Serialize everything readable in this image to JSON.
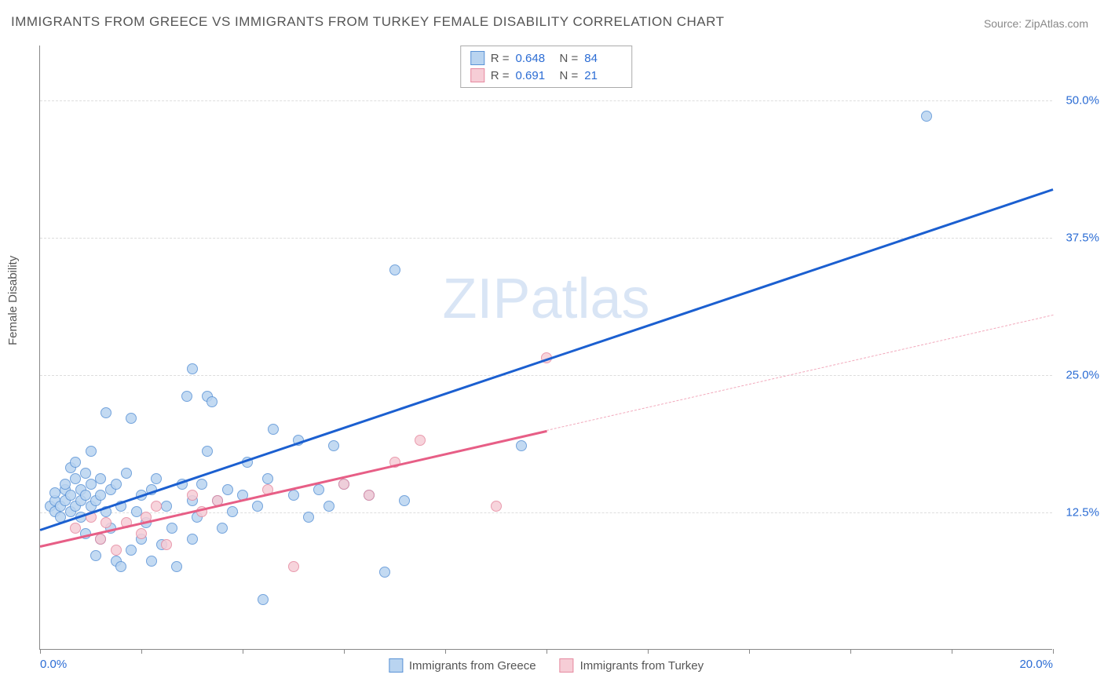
{
  "title": "IMMIGRANTS FROM GREECE VS IMMIGRANTS FROM TURKEY FEMALE DISABILITY CORRELATION CHART",
  "source": "Source: ZipAtlas.com",
  "ylabel": "Female Disability",
  "watermark": "ZIPatlas",
  "chart": {
    "type": "scatter",
    "xlim": [
      0,
      20
    ],
    "ylim": [
      0,
      55
    ],
    "xtick_positions": [
      0,
      2,
      4,
      6,
      8,
      10,
      12,
      14,
      16,
      18,
      20
    ],
    "xtick_labels": {
      "0": "0.0%",
      "20": "20.0%"
    },
    "ytick_positions": [
      12.5,
      25.0,
      37.5,
      50.0
    ],
    "ytick_labels": [
      "12.5%",
      "25.0%",
      "37.5%",
      "50.0%"
    ],
    "grid_color": "#dddddd",
    "axis_color": "#888888",
    "background_color": "#ffffff",
    "point_radius": 7,
    "series": [
      {
        "name": "Immigrants from Greece",
        "color_fill": "#b9d4f0",
        "color_stroke": "#5b93d6",
        "R": "0.648",
        "N": "84",
        "trend": {
          "x1": 0,
          "y1": 11.0,
          "x2": 20,
          "y2": 42.0,
          "solid_until_x": 20,
          "color": "#1b5fd0",
          "width": 2.5
        },
        "points": [
          [
            0.2,
            13.0
          ],
          [
            0.3,
            12.5
          ],
          [
            0.3,
            13.5
          ],
          [
            0.4,
            13.0
          ],
          [
            0.4,
            12.0
          ],
          [
            0.5,
            13.5
          ],
          [
            0.5,
            14.5
          ],
          [
            0.5,
            15.0
          ],
          [
            0.6,
            16.5
          ],
          [
            0.6,
            14.0
          ],
          [
            0.6,
            12.5
          ],
          [
            0.7,
            17.0
          ],
          [
            0.7,
            13.0
          ],
          [
            0.7,
            15.5
          ],
          [
            0.8,
            12.0
          ],
          [
            0.8,
            13.5
          ],
          [
            0.8,
            14.5
          ],
          [
            0.9,
            14.0
          ],
          [
            0.9,
            10.5
          ],
          [
            0.9,
            16.0
          ],
          [
            1.0,
            13.0
          ],
          [
            1.0,
            15.0
          ],
          [
            1.0,
            18.0
          ],
          [
            1.1,
            13.5
          ],
          [
            1.1,
            8.5
          ],
          [
            1.2,
            14.0
          ],
          [
            1.2,
            10.0
          ],
          [
            1.2,
            15.5
          ],
          [
            1.3,
            21.5
          ],
          [
            1.3,
            12.5
          ],
          [
            1.4,
            11.0
          ],
          [
            1.4,
            14.5
          ],
          [
            1.5,
            8.0
          ],
          [
            1.5,
            15.0
          ],
          [
            1.6,
            7.5
          ],
          [
            1.6,
            13.0
          ],
          [
            1.7,
            16.0
          ],
          [
            1.8,
            9.0
          ],
          [
            1.8,
            21.0
          ],
          [
            1.9,
            12.5
          ],
          [
            2.0,
            14.0
          ],
          [
            2.0,
            10.0
          ],
          [
            2.1,
            11.5
          ],
          [
            2.2,
            8.0
          ],
          [
            2.2,
            14.5
          ],
          [
            2.3,
            15.5
          ],
          [
            2.4,
            9.5
          ],
          [
            2.5,
            13.0
          ],
          [
            2.6,
            11.0
          ],
          [
            2.7,
            7.5
          ],
          [
            2.8,
            15.0
          ],
          [
            2.9,
            23.0
          ],
          [
            3.0,
            25.5
          ],
          [
            3.0,
            10.0
          ],
          [
            3.0,
            13.5
          ],
          [
            3.1,
            12.0
          ],
          [
            3.2,
            15.0
          ],
          [
            3.3,
            18.0
          ],
          [
            3.3,
            23.0
          ],
          [
            3.4,
            22.5
          ],
          [
            3.5,
            13.5
          ],
          [
            3.6,
            11.0
          ],
          [
            3.7,
            14.5
          ],
          [
            3.8,
            12.5
          ],
          [
            4.0,
            14.0
          ],
          [
            4.1,
            17.0
          ],
          [
            4.3,
            13.0
          ],
          [
            4.4,
            4.5
          ],
          [
            4.5,
            15.5
          ],
          [
            4.6,
            20.0
          ],
          [
            5.0,
            14.0
          ],
          [
            5.1,
            19.0
          ],
          [
            5.3,
            12.0
          ],
          [
            5.5,
            14.5
          ],
          [
            5.7,
            13.0
          ],
          [
            5.8,
            18.5
          ],
          [
            6.0,
            15.0
          ],
          [
            6.5,
            14.0
          ],
          [
            6.8,
            7.0
          ],
          [
            7.0,
            34.5
          ],
          [
            7.2,
            13.5
          ],
          [
            9.5,
            18.5
          ],
          [
            17.5,
            48.5
          ],
          [
            0.3,
            14.2
          ]
        ]
      },
      {
        "name": "Immigrants from Turkey",
        "color_fill": "#f6cdd6",
        "color_stroke": "#e68aa0",
        "R": "0.691",
        "N": "21",
        "trend": {
          "x1": 0,
          "y1": 9.5,
          "x2": 20,
          "y2": 30.5,
          "solid_until_x": 10,
          "color": "#e75e86",
          "width": 2.5,
          "dash_color": "#f2a9bc"
        },
        "points": [
          [
            0.7,
            11.0
          ],
          [
            1.0,
            12.0
          ],
          [
            1.2,
            10.0
          ],
          [
            1.3,
            11.5
          ],
          [
            1.5,
            9.0
          ],
          [
            1.7,
            11.5
          ],
          [
            2.0,
            10.5
          ],
          [
            2.1,
            12.0
          ],
          [
            2.3,
            13.0
          ],
          [
            2.5,
            9.5
          ],
          [
            3.0,
            14.0
          ],
          [
            3.2,
            12.5
          ],
          [
            3.5,
            13.5
          ],
          [
            4.5,
            14.5
          ],
          [
            5.0,
            7.5
          ],
          [
            6.0,
            15.0
          ],
          [
            6.5,
            14.0
          ],
          [
            7.0,
            17.0
          ],
          [
            7.5,
            19.0
          ],
          [
            9.0,
            13.0
          ],
          [
            10.0,
            26.5
          ]
        ]
      }
    ]
  },
  "legend_top": {
    "rows": [
      {
        "swatch_fill": "#b9d4f0",
        "swatch_stroke": "#5b93d6",
        "r_label": "R =",
        "r_val": "0.648",
        "n_label": "N =",
        "n_val": "84"
      },
      {
        "swatch_fill": "#f6cdd6",
        "swatch_stroke": "#e68aa0",
        "r_label": "R =",
        "r_val": "0.691",
        "n_label": "N =",
        "n_val": "21"
      }
    ]
  },
  "legend_bottom": {
    "items": [
      {
        "swatch_fill": "#b9d4f0",
        "swatch_stroke": "#5b93d6",
        "label": "Immigrants from Greece"
      },
      {
        "swatch_fill": "#f6cdd6",
        "swatch_stroke": "#e68aa0",
        "label": "Immigrants from Turkey"
      }
    ]
  },
  "colors": {
    "title_text": "#555555",
    "axis_label_text": "#555555",
    "tick_text": "#2b6cd4"
  }
}
